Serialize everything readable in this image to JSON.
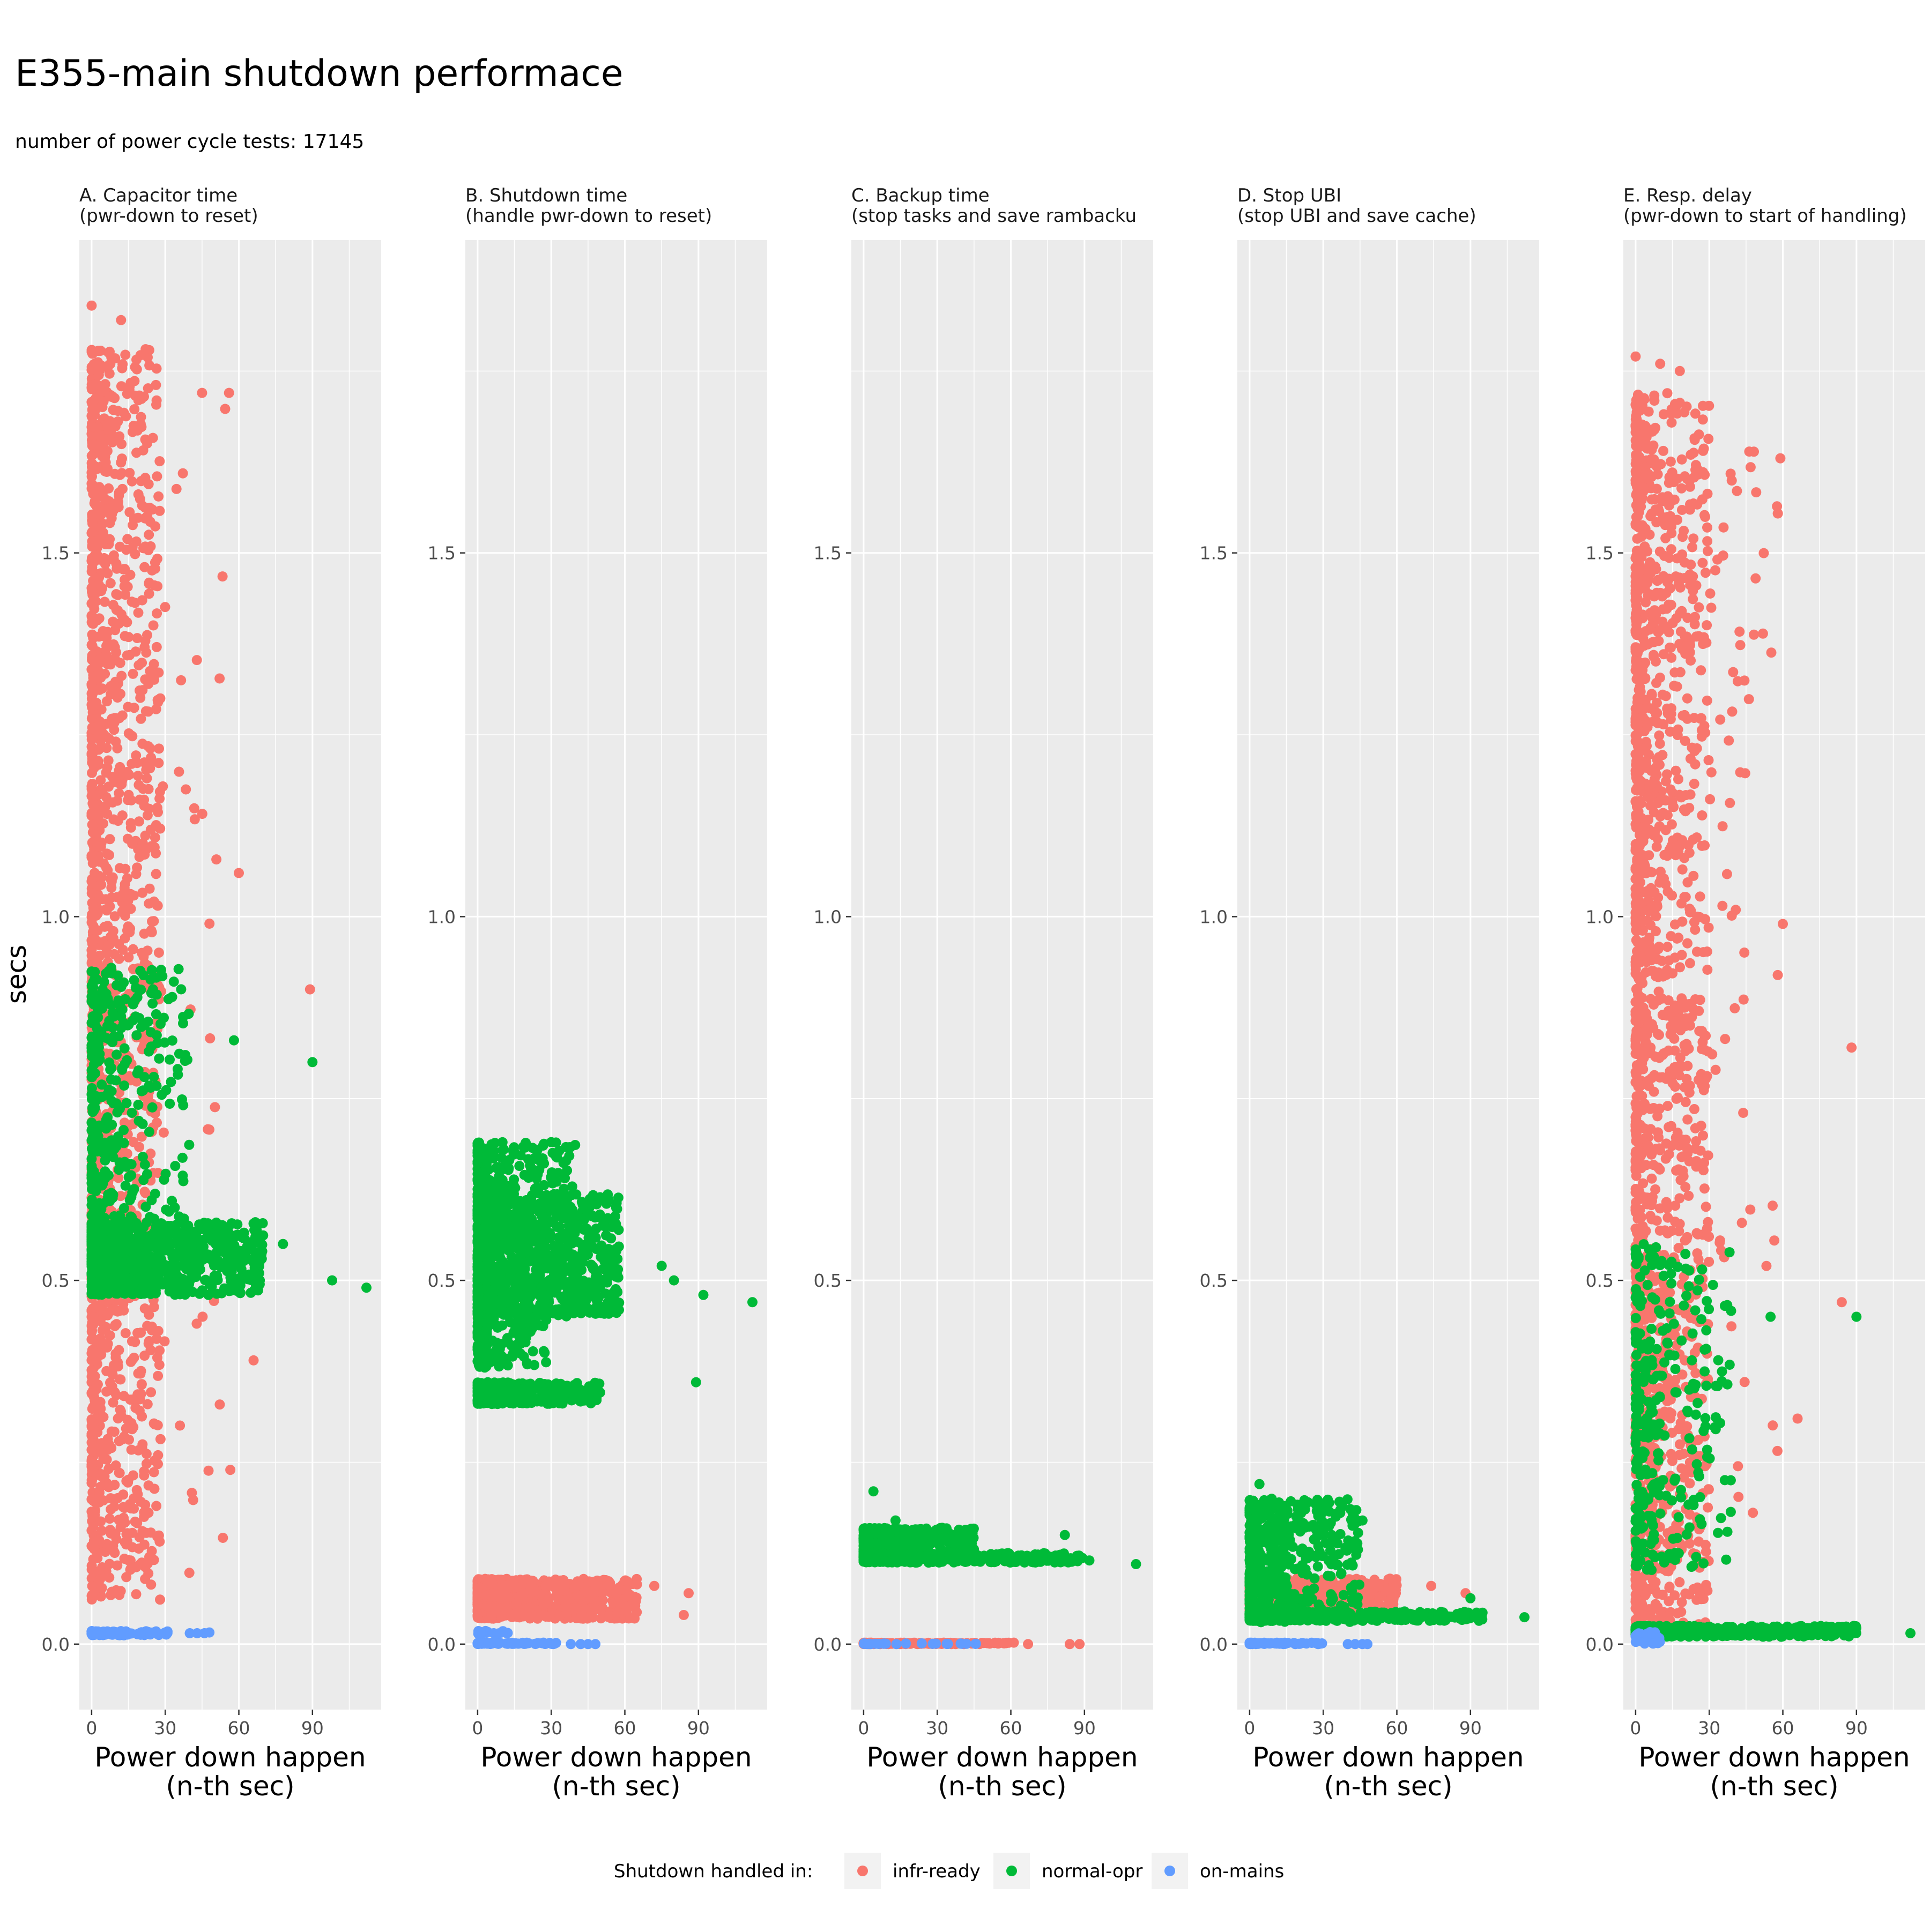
{
  "title": "E355-main shutdown performace",
  "subtitle": "number of power cycle tests: 17145",
  "y_axis_title": "secs",
  "x_axis_title_line1": "Power down happen",
  "x_axis_title_line2": "(n-th sec)",
  "legend": {
    "title": "Shutdown handled in:",
    "entries": [
      {
        "label": "infr-ready",
        "color": "#F8766D"
      },
      {
        "label": "normal-opr",
        "color": "#00BA38"
      },
      {
        "label": "on-mains",
        "color": "#619CFF"
      }
    ]
  },
  "colors": {
    "panel_background": "#EBEBEB",
    "grid_major": "#FFFFFF",
    "infr-ready": "#F8766D",
    "normal-opr": "#00BA38",
    "on-mains": "#619CFF"
  },
  "chart_data": {
    "type": "scatter",
    "shared_y": true,
    "xlim": [
      -5,
      118
    ],
    "ylim": [
      -0.09,
      1.93
    ],
    "x_ticks": [
      0,
      30,
      60,
      90
    ],
    "y_ticks": [
      0.0,
      0.5,
      1.0,
      1.5
    ],
    "y_tick_labels": [
      "0.0",
      "0.5",
      "1.0",
      "1.5"
    ],
    "x_tick_labels": [
      "0",
      "30",
      "60",
      "90"
    ],
    "grid": true,
    "legend_position": "bottom",
    "panels": [
      {
        "title_line1": "A. Capacitor time",
        "title_line2": "(pwr-down to reset)",
        "series": [
          {
            "name": "infr-ready",
            "clusters": [
              {
                "x": [
                  0,
                  28
                ],
                "y": [
                  0.06,
                  1.78
                ],
                "n": 1500
              },
              {
                "x": [
                  0,
                  60
                ],
                "y": [
                  0.08,
                  1.75
                ],
                "n": 160
              }
            ],
            "points": [
              [
                0,
                1.84
              ],
              [
                12,
                1.82
              ],
              [
                22,
                1.78
              ],
              [
                56,
                1.72
              ],
              [
                89,
                0.9
              ],
              [
                66,
                0.39
              ],
              [
                60,
                1.06
              ],
              [
                28,
                1.3
              ],
              [
                45,
                1.72
              ]
            ]
          },
          {
            "name": "normal-opr",
            "clusters": [
              {
                "x": [
                  0,
                  70
                ],
                "y": [
                  0.48,
                  0.58
                ],
                "n": 900
              },
              {
                "x": [
                  0,
                  40
                ],
                "y": [
                  0.58,
                  0.93
                ],
                "n": 320
              }
            ],
            "points": [
              [
                90,
                0.8
              ],
              [
                112,
                0.49
              ],
              [
                98,
                0.5
              ],
              [
                78,
                0.55
              ],
              [
                25,
                0.9
              ],
              [
                58,
                0.83
              ]
            ]
          },
          {
            "name": "on-mains",
            "clusters": [
              {
                "x": [
                  0,
                  32
                ],
                "y": [
                  0.012,
                  0.018
                ],
                "n": 90
              }
            ],
            "points": [
              [
                40,
                0.015
              ],
              [
                43,
                0.015
              ],
              [
                46,
                0.015
              ],
              [
                48,
                0.016
              ]
            ]
          }
        ]
      },
      {
        "title_line1": "B. Shutdown time",
        "title_line2": "(handle pwr-down to reset)",
        "series": [
          {
            "name": "infr-ready",
            "clusters": [
              {
                "x": [
                  0,
                  65
                ],
                "y": [
                  0.035,
                  0.09
                ],
                "n": 900
              }
            ],
            "points": [
              [
                86,
                0.07
              ],
              [
                84,
                0.04
              ],
              [
                72,
                0.08
              ]
            ]
          },
          {
            "name": "normal-opr",
            "clusters": [
              {
                "x": [
                  0,
                  58
                ],
                "y": [
                  0.45,
                  0.62
                ],
                "n": 1100
              },
              {
                "x": [
                  0,
                  40
                ],
                "y": [
                  0.62,
                  0.69
                ],
                "n": 160
              },
              {
                "x": [
                  0,
                  28
                ],
                "y": [
                  0.38,
                  0.45
                ],
                "n": 140
              },
              {
                "x": [
                  0,
                  50
                ],
                "y": [
                  0.33,
                  0.36
                ],
                "n": 380
              }
            ],
            "points": [
              [
                112,
                0.47
              ],
              [
                92,
                0.48
              ],
              [
                89,
                0.36
              ],
              [
                80,
                0.5
              ],
              [
                75,
                0.52
              ],
              [
                30,
                0.69
              ]
            ]
          },
          {
            "name": "on-mains",
            "clusters": [
              {
                "x": [
                  0,
                  32
                ],
                "y": [
                  0.0,
                  0.002
                ],
                "n": 80
              },
              {
                "x": [
                  0,
                  15
                ],
                "y": [
                  0.014,
                  0.018
                ],
                "n": 20
              }
            ],
            "points": [
              [
                38,
                0.0
              ],
              [
                42,
                0.0
              ],
              [
                45,
                0.0
              ],
              [
                48,
                0.0
              ]
            ]
          }
        ]
      },
      {
        "title_line1": "C. Backup time",
        "title_line2": "(stop tasks and save rambacku",
        "series": [
          {
            "name": "infr-ready",
            "clusters": [
              {
                "x": [
                  0,
                  62
                ],
                "y": [
                  0.0,
                  0.002
                ],
                "n": 160
              }
            ],
            "points": [
              [
                67,
                0.0
              ],
              [
                84,
                0.0
              ],
              [
                88,
                0.0
              ]
            ]
          },
          {
            "name": "normal-opr",
            "clusters": [
              {
                "x": [
                  0,
                  45
                ],
                "y": [
                  0.115,
                  0.16
                ],
                "n": 700
              },
              {
                "x": [
                  0,
                  90
                ],
                "y": [
                  0.112,
                  0.125
                ],
                "n": 400
              }
            ],
            "points": [
              [
                4,
                0.21
              ],
              [
                13,
                0.17
              ],
              [
                82,
                0.15
              ],
              [
                111,
                0.11
              ],
              [
                92,
                0.115
              ]
            ]
          },
          {
            "name": "on-mains",
            "clusters": [
              {
                "x": [
                  0,
                  48
                ],
                "y": [
                  0.0,
                  0.001
                ],
                "n": 25
              }
            ],
            "points": []
          }
        ]
      },
      {
        "title_line1": "D. Stop UBI",
        "title_line2": "(stop UBI and save cache)",
        "series": [
          {
            "name": "infr-ready",
            "clusters": [
              {
                "x": [
                  0,
                  60
                ],
                "y": [
                  0.04,
                  0.09
                ],
                "n": 700
              }
            ],
            "points": [
              [
                74,
                0.08
              ],
              [
                88,
                0.07
              ]
            ]
          },
          {
            "name": "normal-opr",
            "clusters": [
              {
                "x": [
                  0,
                  45
                ],
                "y": [
                  0.03,
                  0.2
                ],
                "n": 500
              },
              {
                "x": [
                  0,
                  95
                ],
                "y": [
                  0.032,
                  0.045
                ],
                "n": 500
              }
            ],
            "points": [
              [
                112,
                0.037
              ],
              [
                90,
                0.063
              ],
              [
                4,
                0.22
              ],
              [
                46,
                0.17
              ]
            ]
          },
          {
            "name": "on-mains",
            "clusters": [
              {
                "x": [
                  0,
                  32
                ],
                "y": [
                  0.0,
                  0.002
                ],
                "n": 80
              }
            ],
            "points": [
              [
                40,
                0.0
              ],
              [
                43,
                0.0
              ],
              [
                46,
                0.0
              ],
              [
                48,
                0.0
              ]
            ]
          }
        ]
      },
      {
        "title_line1": "E. Resp. delay",
        "title_line2": "(pwr-down to start of handling)",
        "series": [
          {
            "name": "infr-ready",
            "clusters": [
              {
                "x": [
                  0,
                  30
                ],
                "y": [
                  0.02,
                  1.72
                ],
                "n": 1500
              },
              {
                "x": [
                  0,
                  58
                ],
                "y": [
                  0.1,
                  1.65
                ],
                "n": 220
              }
            ],
            "points": [
              [
                0,
                1.77
              ],
              [
                10,
                1.76
              ],
              [
                18,
                1.75
              ],
              [
                59,
                1.63
              ],
              [
                60,
                0.99
              ],
              [
                88,
                0.82
              ],
              [
                84,
                0.47
              ],
              [
                66,
                0.31
              ]
            ]
          },
          {
            "name": "normal-opr",
            "clusters": [
              {
                "x": [
                  0,
                  40
                ],
                "y": [
                  0.1,
                  0.55
                ],
                "n": 300
              },
              {
                "x": [
                  0,
                  90
                ],
                "y": [
                  0.01,
                  0.025
                ],
                "n": 500
              }
            ],
            "points": [
              [
                112,
                0.015
              ],
              [
                90,
                0.45
              ],
              [
                55,
                0.45
              ]
            ]
          },
          {
            "name": "on-mains",
            "clusters": [
              {
                "x": [
                  0,
                  10
                ],
                "y": [
                  0.0,
                  0.02
                ],
                "n": 25
              }
            ],
            "points": []
          }
        ]
      }
    ]
  }
}
